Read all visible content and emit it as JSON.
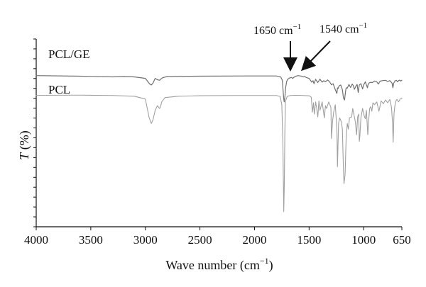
{
  "chart_data": {
    "type": "line",
    "title": "",
    "xlabel": "Wave number (cm",
    "xlabel_sup": "−1",
    "xlabel_suffix": ")",
    "ylabel": "T (%)",
    "ylabel_italic": "T",
    "ylabel_rest": " (%)",
    "x_range": [
      4000,
      650
    ],
    "x_ticks": [
      4000,
      3500,
      3000,
      2500,
      2000,
      1500,
      1000,
      650
    ],
    "x_tick_labels": [
      "4000",
      "3500",
      "3000",
      "2500",
      "2000",
      "1500",
      "1000",
      "650"
    ],
    "y_ticks_count": 19,
    "y_range": [
      0,
      100
    ],
    "series": [
      {
        "name": "PCL/GE",
        "color": "#6f6f6f",
        "x": [
          4000,
          3600,
          3300,
          3200,
          3100,
          3000,
          2960,
          2945,
          2930,
          2910,
          2890,
          2870,
          2860,
          2840,
          2800,
          2500,
          2100,
          1800,
          1760,
          1745,
          1740,
          1733,
          1728,
          1722,
          1715,
          1705,
          1695,
          1680,
          1660,
          1650,
          1640,
          1620,
          1600,
          1570,
          1550,
          1540,
          1530,
          1500,
          1475,
          1465,
          1455,
          1440,
          1420,
          1400,
          1380,
          1365,
          1350,
          1330,
          1310,
          1295,
          1280,
          1260,
          1245,
          1240,
          1235,
          1225,
          1210,
          1195,
          1185,
          1175,
          1170,
          1165,
          1160,
          1150,
          1135,
          1120,
          1105,
          1095,
          1085,
          1070,
          1060,
          1050,
          1045,
          1040,
          1025,
          1010,
          1000,
          985,
          965,
          960,
          950,
          935,
          920,
          900,
          880,
          865,
          850,
          830,
          800,
          780,
          760,
          740,
          732,
          725,
          710,
          700,
          690,
          680,
          670,
          660,
          650
        ],
        "y": [
          80.5,
          80.2,
          79.8,
          80.0,
          79.8,
          79.0,
          76.0,
          75.5,
          76.5,
          79.0,
          78.3,
          78.0,
          78.6,
          79.4,
          80.0,
          80.2,
          80.3,
          80.3,
          79.8,
          78.0,
          74.0,
          68.5,
          66.5,
          69.0,
          74.0,
          77.5,
          78.6,
          79.2,
          79.5,
          79.0,
          79.6,
          80.2,
          80.5,
          80.2,
          79.8,
          80.0,
          79.6,
          79.0,
          77.0,
          77.8,
          76.2,
          78.5,
          76.8,
          78.6,
          77.0,
          77.8,
          77.2,
          78.2,
          77.0,
          75.6,
          76.2,
          73.0,
          71.0,
          74.0,
          73.5,
          75.0,
          75.5,
          73.0,
          68.5,
          67.5,
          70.0,
          72.5,
          74.0,
          73.8,
          75.8,
          74.2,
          76.0,
          75.2,
          73.2,
          75.0,
          75.8,
          71.5,
          73.5,
          75.5,
          76.2,
          73.4,
          75.5,
          77.2,
          74.0,
          75.6,
          76.6,
          76.9,
          76.8,
          77.6,
          77.2,
          76.0,
          77.5,
          77.8,
          78.0,
          77.4,
          77.8,
          76.5,
          74.0,
          76.5,
          77.8,
          78.0,
          77.2,
          77.8,
          78.1,
          77.6,
          78.0
        ]
      },
      {
        "name": "PCL",
        "color": "#a0a0a0",
        "x": [
          4000,
          3600,
          3300,
          3200,
          3100,
          3000,
          2965,
          2945,
          2930,
          2910,
          2890,
          2870,
          2862,
          2850,
          2820,
          2700,
          2500,
          2200,
          1900,
          1800,
          1765,
          1750,
          1740,
          1732,
          1727,
          1722,
          1717,
          1710,
          1700,
          1690,
          1670,
          1640,
          1600,
          1560,
          1520,
          1500,
          1480,
          1470,
          1460,
          1452,
          1440,
          1430,
          1420,
          1410,
          1400,
          1380,
          1370,
          1360,
          1350,
          1340,
          1320,
          1300,
          1295,
          1285,
          1275,
          1260,
          1245,
          1240,
          1230,
          1220,
          1205,
          1195,
          1185,
          1180,
          1170,
          1160,
          1150,
          1140,
          1130,
          1110,
          1100,
          1090,
          1075,
          1065,
          1055,
          1045,
          1040,
          1035,
          1025,
          1010,
          995,
          985,
          975,
          962,
          955,
          945,
          935,
          925,
          915,
          900,
          880,
          860,
          840,
          820,
          800,
          780,
          760,
          745,
          735,
          730,
          728,
          722,
          715,
          705,
          695,
          680,
          665,
          650
        ],
        "y": [
          70.0,
          70.1,
          69.9,
          69.7,
          69.5,
          68.0,
          58.0,
          55.0,
          57.0,
          62.0,
          64.5,
          63.0,
          63.8,
          66.5,
          68.8,
          69.5,
          69.8,
          69.9,
          69.9,
          69.9,
          69.4,
          65.0,
          45.0,
          8.0,
          22.0,
          50.0,
          66.0,
          68.0,
          69.4,
          69.6,
          69.9,
          70.0,
          70.0,
          69.9,
          69.8,
          69.8,
          69.0,
          61.0,
          66.0,
          60.0,
          66.5,
          63.0,
          58.5,
          67.0,
          62.0,
          66.5,
          62.0,
          58.0,
          64.5,
          63.0,
          66.5,
          63.5,
          47.0,
          56.0,
          61.0,
          65.0,
          52.0,
          32.0,
          55.0,
          58.0,
          56.0,
          52.0,
          30.0,
          23.0,
          28.0,
          48.0,
          55.0,
          52.0,
          58.0,
          58.5,
          63.0,
          60.0,
          55.5,
          49.0,
          58.5,
          60.0,
          45.5,
          48.0,
          58.0,
          63.0,
          59.0,
          57.5,
          62.0,
          49.0,
          56.0,
          63.0,
          64.0,
          61.5,
          66.0,
          65.0,
          66.5,
          61.5,
          67.0,
          65.5,
          67.5,
          66.0,
          67.8,
          63.5,
          55.0,
          45.0,
          48.0,
          60.0,
          64.0,
          67.0,
          67.8,
          66.5,
          68.0,
          68.5
        ]
      }
    ],
    "series_labels": [
      "PCL/GE",
      "PCL"
    ],
    "annotations": [
      {
        "text": "1650 cm",
        "sup": "−1",
        "target_x": 1650
      },
      {
        "text": "1540 cm",
        "sup": "−1",
        "target_x": 1540
      }
    ],
    "grid": false,
    "legend": "none"
  }
}
